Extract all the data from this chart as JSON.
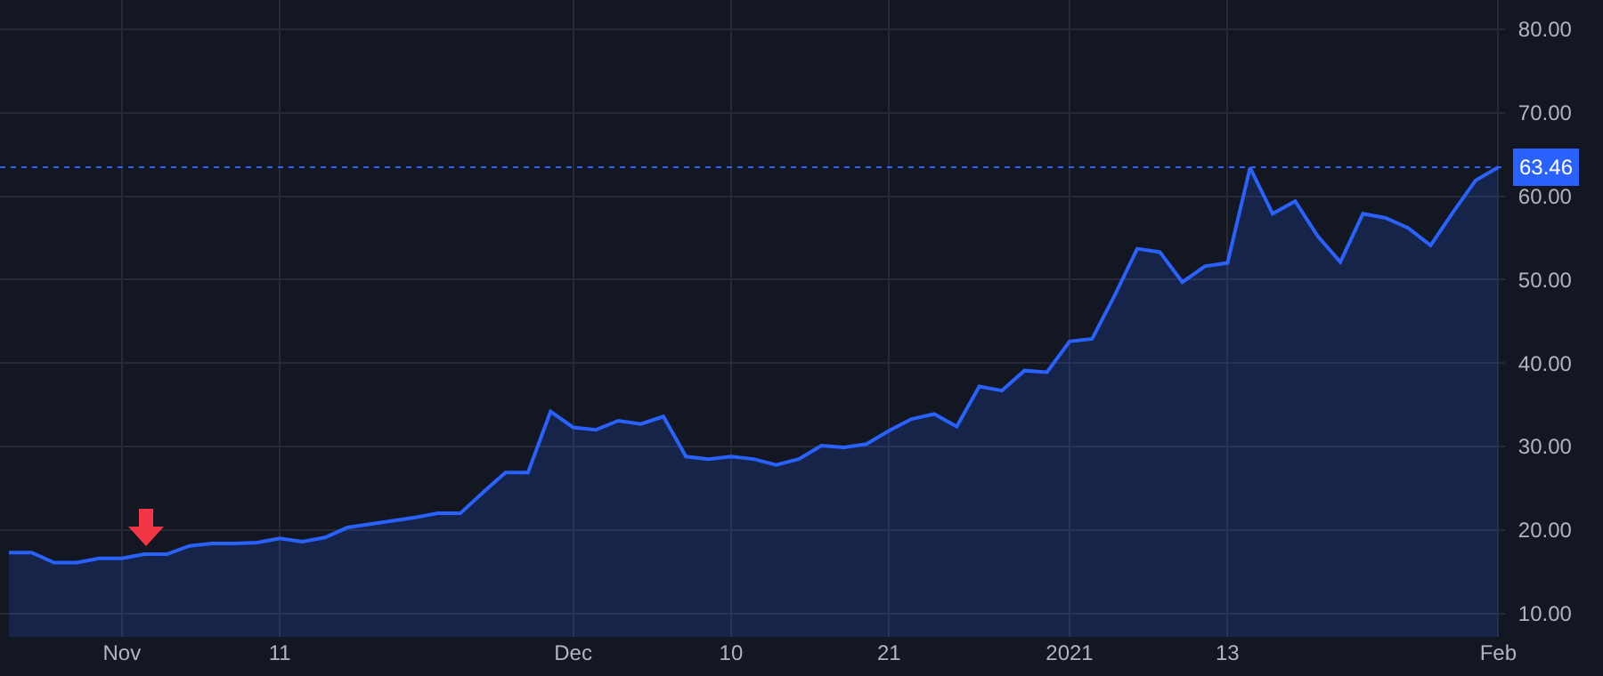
{
  "chart_data": {
    "type": "area",
    "categories": [
      null,
      null,
      null,
      null,
      null,
      "Nov",
      null,
      null,
      null,
      null,
      null,
      null,
      "11",
      null,
      null,
      null,
      null,
      null,
      null,
      null,
      null,
      null,
      null,
      null,
      null,
      "Dec",
      null,
      null,
      null,
      null,
      null,
      null,
      "10",
      null,
      null,
      null,
      null,
      null,
      null,
      "21",
      null,
      null,
      null,
      null,
      null,
      null,
      null,
      "2021",
      null,
      null,
      null,
      null,
      null,
      null,
      "13",
      null,
      null,
      null,
      null,
      null,
      null,
      null,
      null,
      null,
      null,
      null,
      "Feb"
    ],
    "series": [
      {
        "color": "#2962ff",
        "values": [
          17.3,
          17.3,
          16.1,
          16.1,
          16.6,
          16.6,
          17.1,
          17.1,
          18.1,
          18.4,
          18.4,
          18.5,
          19.0,
          18.6,
          19.1,
          20.3,
          20.7,
          21.1,
          21.5,
          22.0,
          22.0,
          24.5,
          26.9,
          26.9,
          34.2,
          32.3,
          32.0,
          33.1,
          32.7,
          33.6,
          28.8,
          28.5,
          28.8,
          28.5,
          27.8,
          28.5,
          30.1,
          29.9,
          30.3,
          31.9,
          33.3,
          33.9,
          32.4,
          37.2,
          36.7,
          39.1,
          38.9,
          42.6,
          42.9,
          48.1,
          53.7,
          53.3,
          49.7,
          51.6,
          52.0,
          63.4,
          57.9,
          59.4,
          55.2,
          52.1,
          57.9,
          57.4,
          56.2,
          54.1,
          58.1,
          61.9,
          63.46
        ]
      }
    ],
    "ylim": [
      7.2,
      83.5
    ],
    "yticks": [
      {
        "value": 10,
        "label": "10.00"
      },
      {
        "value": 20,
        "label": "20.00"
      },
      {
        "value": 30,
        "label": "30.00"
      },
      {
        "value": 40,
        "label": "40.00"
      },
      {
        "value": 50,
        "label": "50.00"
      },
      {
        "value": 60,
        "label": "60.00"
      },
      {
        "value": 70,
        "label": "70.00"
      },
      {
        "value": 80,
        "label": "80.00"
      }
    ],
    "ref_lines": [
      {
        "axis": "y",
        "value": 63.46,
        "label": "63.46",
        "color": "#2962ff",
        "line_style": "dotted"
      }
    ],
    "grid": true
  }
}
